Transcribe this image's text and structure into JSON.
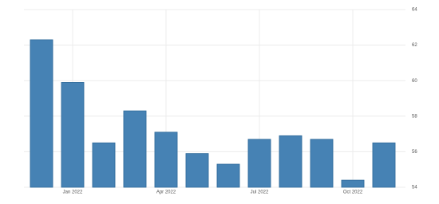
{
  "chart_data": {
    "type": "bar",
    "categories": [
      null,
      "Jan 2022",
      null,
      null,
      "Apr 2022",
      null,
      null,
      "Jul 2022",
      null,
      null,
      "Oct 2022",
      null
    ],
    "values": [
      62.3,
      59.9,
      56.5,
      58.3,
      57.1,
      55.9,
      55.3,
      56.7,
      56.9,
      56.7,
      54.4,
      56.5
    ],
    "color": "#4682b4",
    "ylim": [
      54,
      64
    ],
    "yticks": [
      54,
      56,
      58,
      60,
      62,
      64
    ],
    "grid": true,
    "y_axis_side": "right"
  }
}
